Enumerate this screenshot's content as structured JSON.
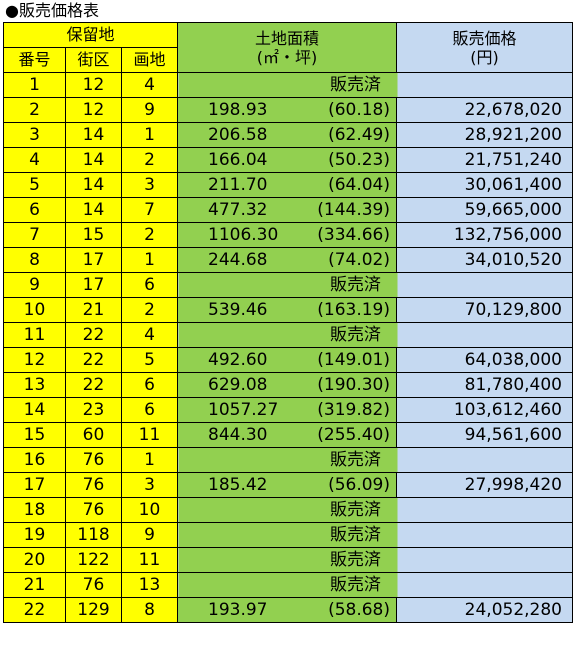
{
  "title": "●販売価格表",
  "header": {
    "group": "保留地",
    "col_no": "番号",
    "col_block": "街区",
    "col_lot": "画地",
    "area_line1": "土地面積",
    "area_line2": "(㎡・坪)",
    "price_line1": "販売価格",
    "price_line2": "(円)"
  },
  "sold_label": "販売済",
  "rows": [
    {
      "no": "1",
      "block": "12",
      "lot": "4",
      "sold": true,
      "sold_text": "販売済"
    },
    {
      "no": "2",
      "block": "12",
      "lot": "9",
      "sqm": "198.93",
      "tsubo": "(60.18)",
      "price": "22,678,020"
    },
    {
      "no": "3",
      "block": "14",
      "lot": "1",
      "sqm": "206.58",
      "tsubo": "(62.49)",
      "price": "28,921,200"
    },
    {
      "no": "4",
      "block": "14",
      "lot": "2",
      "sqm": "166.04",
      "tsubo": "(50.23)",
      "price": "21,751,240"
    },
    {
      "no": "5",
      "block": "14",
      "lot": "3",
      "sqm": "211.70",
      "tsubo": "(64.04)",
      "price": "30,061,400"
    },
    {
      "no": "6",
      "block": "14",
      "lot": "7",
      "sqm": "477.32",
      "tsubo": "(144.39)",
      "price": "59,665,000"
    },
    {
      "no": "7",
      "block": "15",
      "lot": "2",
      "sqm": "1106.30",
      "tsubo": "(334.66)",
      "price": "132,756,000"
    },
    {
      "no": "8",
      "block": "17",
      "lot": "1",
      "sqm": "244.68",
      "tsubo": "(74.02)",
      "price": "34,010,520"
    },
    {
      "no": "9",
      "block": "17",
      "lot": "6",
      "sold": true,
      "sold_text": "販売済"
    },
    {
      "no": "10",
      "block": "21",
      "lot": "2",
      "sqm": "539.46",
      "tsubo": "(163.19)",
      "price": "70,129,800"
    },
    {
      "no": "11",
      "block": "22",
      "lot": "4",
      "sold": true,
      "sold_text": "販売済"
    },
    {
      "no": "12",
      "block": "22",
      "lot": "5",
      "sqm": "492.60",
      "tsubo": "(149.01)",
      "price": "64,038,000"
    },
    {
      "no": "13",
      "block": "22",
      "lot": "6",
      "sqm": "629.08",
      "tsubo": "(190.30)",
      "price": "81,780,400"
    },
    {
      "no": "14",
      "block": "23",
      "lot": "6",
      "sqm": "1057.27",
      "tsubo": "(319.82)",
      "price": "103,612,460"
    },
    {
      "no": "15",
      "block": "60",
      "lot": "11",
      "sqm": "844.30",
      "tsubo": "(255.40)",
      "price": "94,561,600"
    },
    {
      "no": "16",
      "block": "76",
      "lot": "1",
      "sold": true,
      "sold_text": "販売済"
    },
    {
      "no": "17",
      "block": "76",
      "lot": "3",
      "sqm": "185.42",
      "tsubo": "(56.09)",
      "price": "27,998,420"
    },
    {
      "no": "18",
      "block": "76",
      "lot": "10",
      "sold": true,
      "sold_text": "販売済"
    },
    {
      "no": "19",
      "block": "118",
      "lot": "9",
      "sold": true,
      "sold_text": "販売済"
    },
    {
      "no": "20",
      "block": "122",
      "lot": "11",
      "sold": true,
      "sold_text": "販売済"
    },
    {
      "no": "21",
      "block": "76",
      "lot": "13",
      "sold": true,
      "sold_text": "販売済"
    },
    {
      "no": "22",
      "block": "129",
      "lot": "8",
      "sqm": "193.97",
      "tsubo": "(58.68)",
      "price": "24,052,280"
    }
  ]
}
